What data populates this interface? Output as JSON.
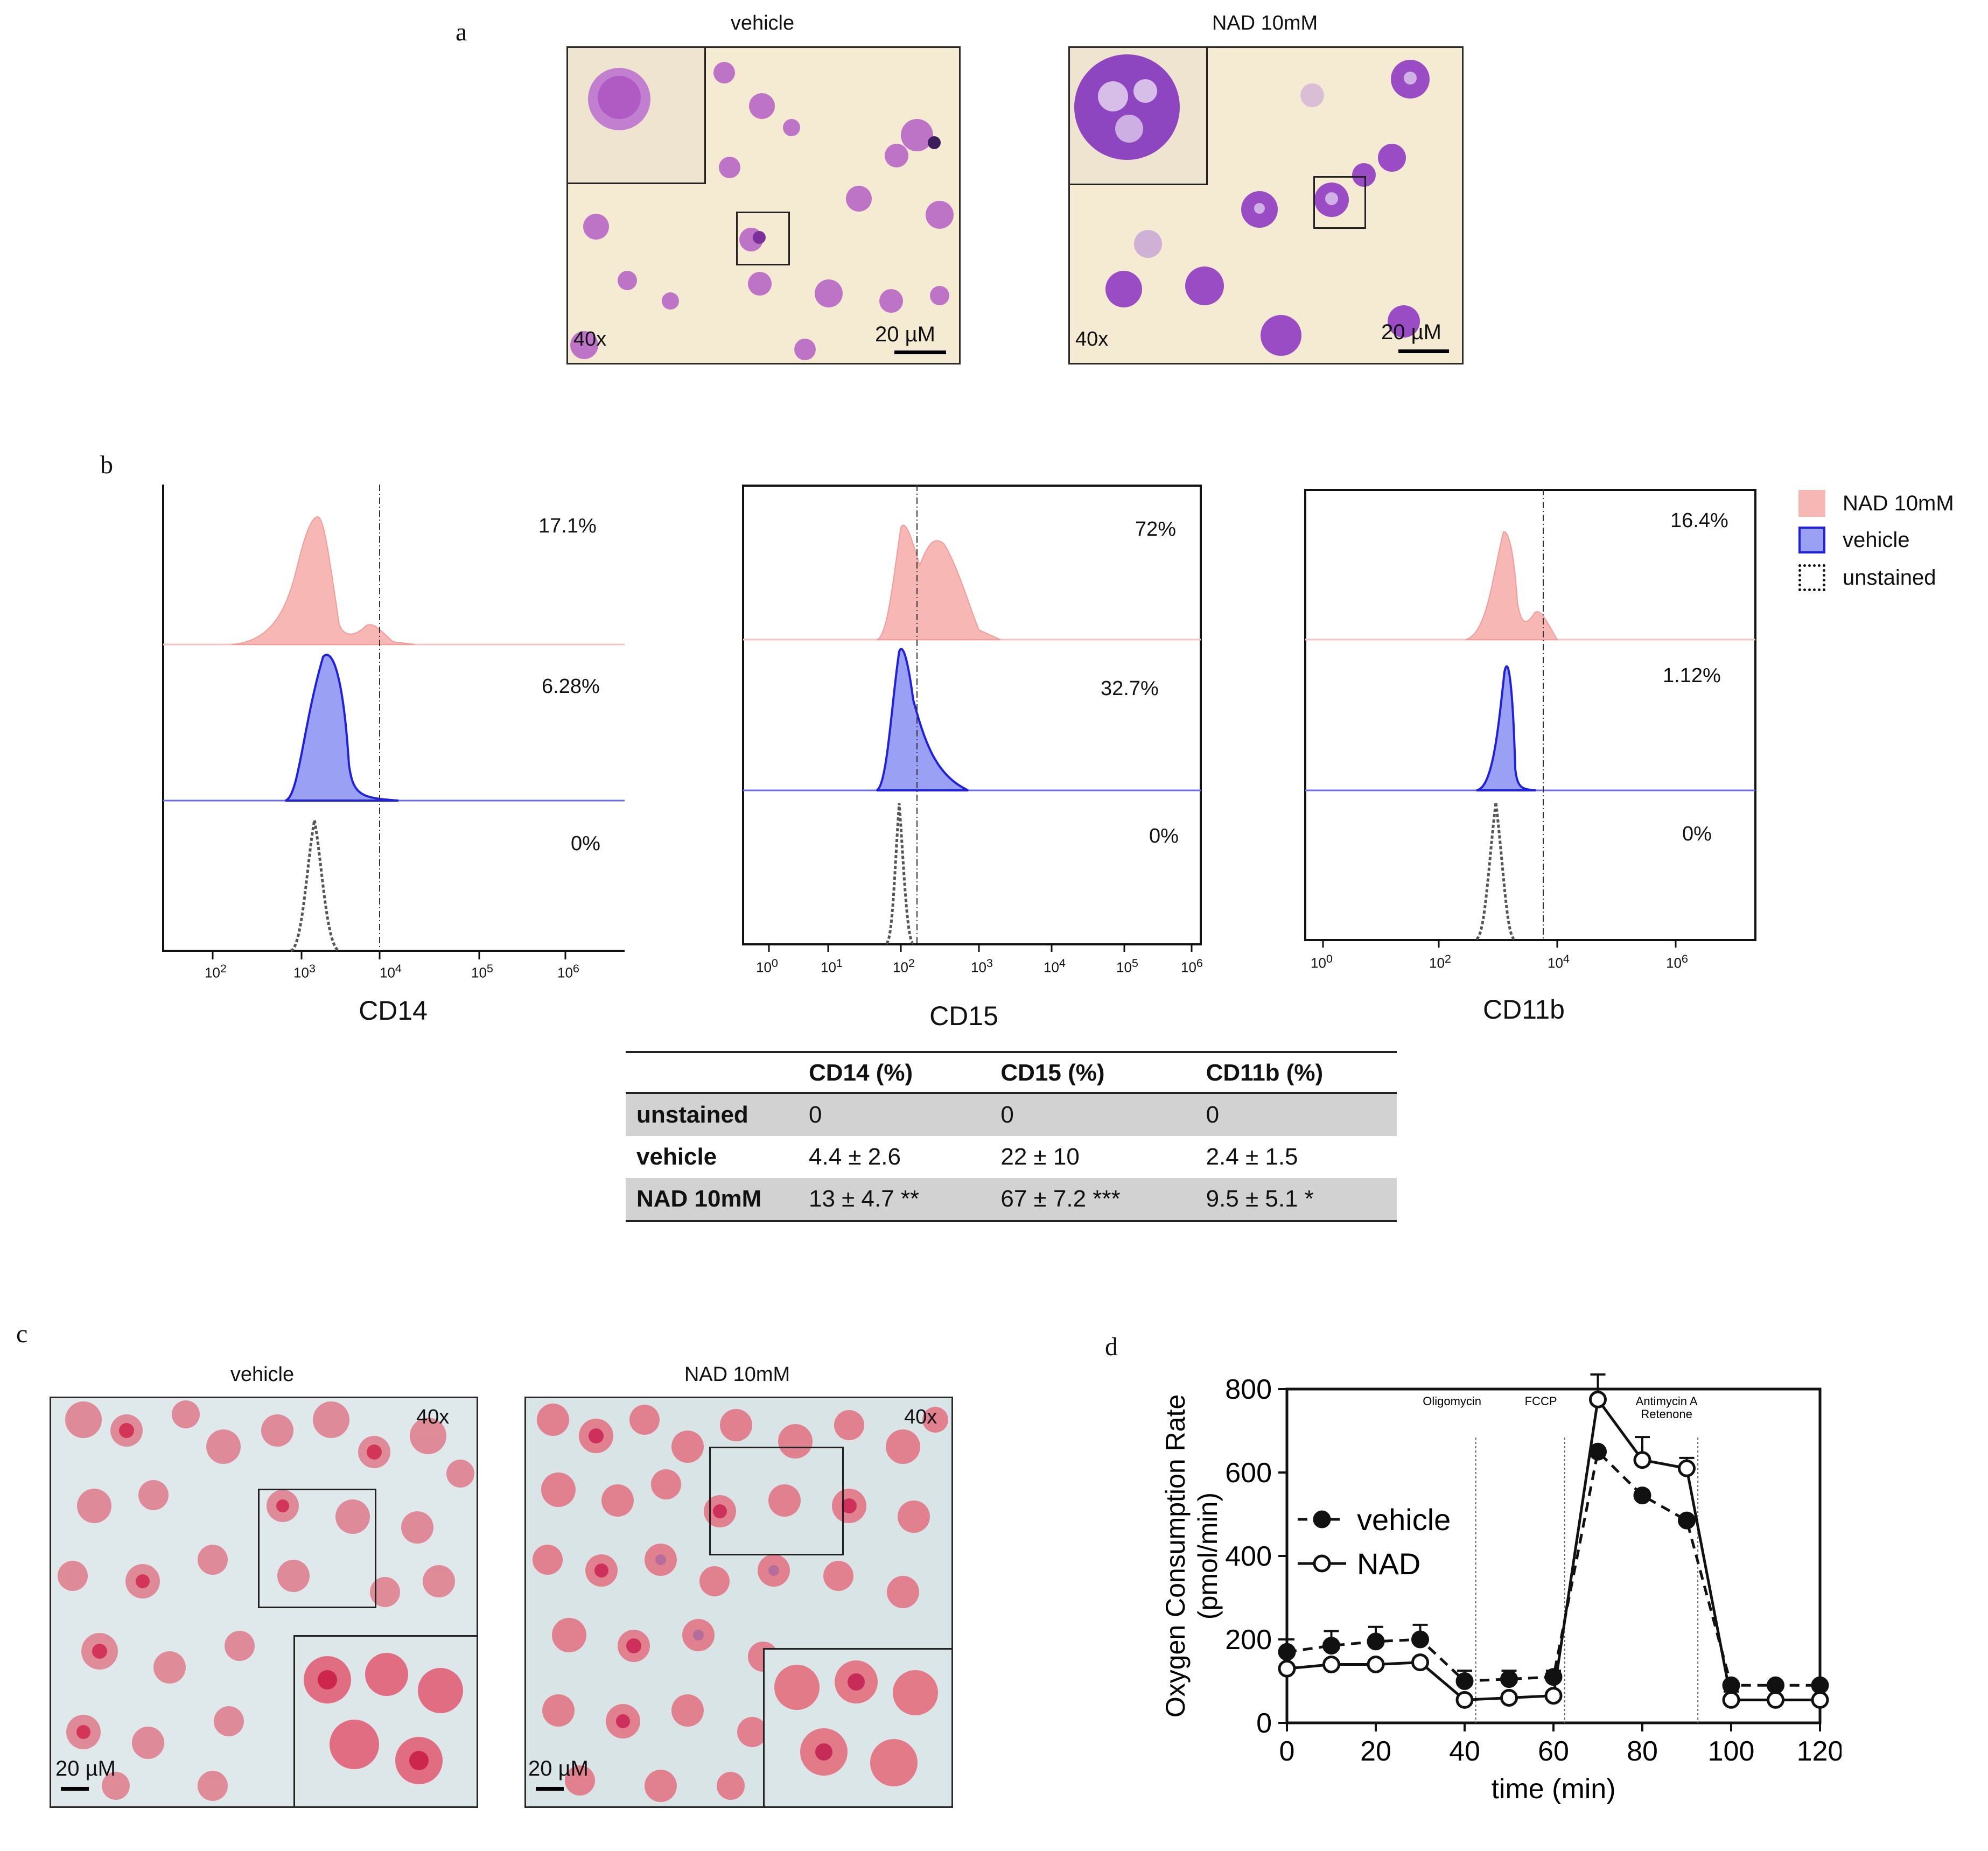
{
  "panel_a": {
    "label": "a",
    "left": {
      "title": "vehicle",
      "magnification": "40x",
      "scale": "20 µM"
    },
    "right": {
      "title": "NAD 10mM",
      "magnification": "40x",
      "scale": "20 µM"
    }
  },
  "panel_b": {
    "label": "b",
    "legend": [
      {
        "label": "NAD 10mM",
        "color": "#f7b8b5"
      },
      {
        "label": "vehicle",
        "color": "#5b5bf0"
      },
      {
        "label": "unstained",
        "color": "#111111"
      }
    ],
    "plots": [
      {
        "marker": "CD14",
        "nad_pct": "17.1%",
        "vehicle_pct": "6.28%",
        "unstained_pct": "0%",
        "ticks": [
          {
            "base": "10",
            "exp": "2"
          },
          {
            "base": "10",
            "exp": "3"
          },
          {
            "base": "10",
            "exp": "4"
          },
          {
            "base": "10",
            "exp": "5"
          },
          {
            "base": "10",
            "exp": "6"
          }
        ]
      },
      {
        "marker": "CD15",
        "nad_pct": "72%",
        "vehicle_pct": "32.7%",
        "unstained_pct": "0%",
        "ticks": [
          {
            "base": "10",
            "exp": "0"
          },
          {
            "base": "10",
            "exp": "1"
          },
          {
            "base": "10",
            "exp": "2"
          },
          {
            "base": "10",
            "exp": "3"
          },
          {
            "base": "10",
            "exp": "4"
          },
          {
            "base": "10",
            "exp": "5"
          },
          {
            "base": "10",
            "exp": "6"
          }
        ]
      },
      {
        "marker": "CD11b",
        "nad_pct": "16.4%",
        "vehicle_pct": "1.12%",
        "unstained_pct": "0%",
        "ticks": [
          {
            "base": "10",
            "exp": "0"
          },
          {
            "base": "10",
            "exp": "2"
          },
          {
            "base": "10",
            "exp": "4"
          },
          {
            "base": "10",
            "exp": "6"
          }
        ]
      }
    ],
    "table": {
      "headers": [
        "",
        "CD14 (%)",
        "CD15 (%)",
        "CD11b (%)"
      ],
      "rows": [
        {
          "label": "unstained",
          "cd14": "0",
          "cd15": "0",
          "cd11b": "0"
        },
        {
          "label": "vehicle",
          "cd14": "4.4 ± 2.6",
          "cd15": "22 ± 10",
          "cd11b": "2.4 ± 1.5"
        },
        {
          "label": "NAD 10mM",
          "cd14": "13 ± 4.7 **",
          "cd15": "67 ± 7.2 ***",
          "cd11b": "9.5 ± 5.1 *"
        }
      ]
    }
  },
  "panel_c": {
    "label": "c",
    "left": {
      "title": "vehicle",
      "magnification": "40x",
      "scale": "20 µM"
    },
    "right": {
      "title": "NAD 10mM",
      "magnification": "40x",
      "scale": "20 µM"
    }
  },
  "panel_d": {
    "label": "d"
  },
  "chart_data": {
    "type": "line",
    "title": "",
    "xlabel": "time (min)",
    "ylabel": "Oxygen Consumption Rate (pmol/min)",
    "ylabel_lines": [
      "Oxygen Consumption Rate",
      "(pmol/min)"
    ],
    "xlim": [
      0,
      120
    ],
    "ylim": [
      0,
      800
    ],
    "xticks": [
      0,
      20,
      40,
      60,
      80,
      100,
      120
    ],
    "yticks": [
      0,
      200,
      400,
      600,
      800
    ],
    "annotations": [
      {
        "label": "Oligomycin",
        "x": 42.5
      },
      {
        "label": "FCCP",
        "x": 62.5
      },
      {
        "label": "Antimycin A Retenone",
        "lines": [
          "Antimycin A",
          "Retenone"
        ],
        "x": 92.5
      }
    ],
    "series": [
      {
        "name": "vehicle",
        "style": "dashed",
        "marker": "filled-circle",
        "x": [
          0,
          10,
          20,
          30,
          40,
          50,
          60,
          70,
          80,
          90,
          100,
          110,
          120
        ],
        "values": [
          170,
          185,
          195,
          200,
          100,
          105,
          110,
          650,
          545,
          485,
          90,
          90,
          90
        ],
        "errors": [
          30,
          35,
          35,
          35,
          25,
          20,
          15,
          0,
          0,
          0,
          0,
          0,
          0
        ]
      },
      {
        "name": "NAD",
        "style": "solid",
        "marker": "open-circle",
        "x": [
          0,
          10,
          20,
          30,
          40,
          50,
          60,
          70,
          80,
          90,
          100,
          110,
          120
        ],
        "values": [
          130,
          140,
          140,
          145,
          55,
          60,
          65,
          775,
          630,
          610,
          55,
          55,
          55
        ],
        "errors": [
          10,
          10,
          10,
          10,
          10,
          10,
          10,
          60,
          55,
          25,
          20,
          0,
          0
        ]
      }
    ]
  }
}
